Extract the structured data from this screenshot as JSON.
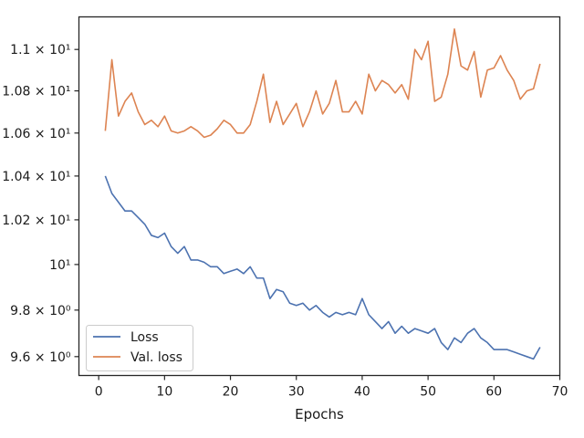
{
  "chart_data": {
    "type": "line",
    "xlabel": "Epochs",
    "ylabel": "",
    "yscale": "log",
    "xlim": [
      -3,
      70
    ],
    "ylim": [
      9.52,
      11.16
    ],
    "grid": false,
    "legend_position": "lower-left",
    "x_ticks": [
      {
        "value": 0,
        "label": "0"
      },
      {
        "value": 10,
        "label": "10"
      },
      {
        "value": 20,
        "label": "20"
      },
      {
        "value": 30,
        "label": "30"
      },
      {
        "value": 40,
        "label": "40"
      },
      {
        "value": 50,
        "label": "50"
      },
      {
        "value": 60,
        "label": "60"
      },
      {
        "value": 70,
        "label": "70"
      }
    ],
    "y_ticks": [
      {
        "value": 9.6,
        "label": "9.6 × 10⁰"
      },
      {
        "value": 9.8,
        "label": "9.8 × 10⁰"
      },
      {
        "value": 10.0,
        "label": "10¹"
      },
      {
        "value": 10.2,
        "label": "1.02 × 10¹"
      },
      {
        "value": 10.4,
        "label": "1.04 × 10¹"
      },
      {
        "value": 10.6,
        "label": "1.06 × 10¹"
      },
      {
        "value": 10.8,
        "label": "1.08 × 10¹"
      },
      {
        "value": 11.0,
        "label": "1.1 × 10¹"
      }
    ],
    "x": [
      1,
      2,
      3,
      4,
      5,
      6,
      7,
      8,
      9,
      10,
      11,
      12,
      13,
      14,
      15,
      16,
      17,
      18,
      19,
      20,
      21,
      22,
      23,
      24,
      25,
      26,
      27,
      28,
      29,
      30,
      31,
      32,
      33,
      34,
      35,
      36,
      37,
      38,
      39,
      40,
      41,
      42,
      43,
      44,
      45,
      46,
      47,
      48,
      49,
      50,
      51,
      52,
      53,
      54,
      55,
      56,
      57,
      58,
      59,
      60,
      61,
      62,
      63,
      64,
      65,
      66,
      67
    ],
    "series": [
      {
        "name": "Loss",
        "color": "#4c72b0",
        "values": [
          10.4,
          10.32,
          10.28,
          10.24,
          10.24,
          10.21,
          10.18,
          10.13,
          10.12,
          10.14,
          10.08,
          10.05,
          10.08,
          10.02,
          10.02,
          10.01,
          9.99,
          9.99,
          9.96,
          9.97,
          9.98,
          9.96,
          9.99,
          9.94,
          9.94,
          9.85,
          9.89,
          9.88,
          9.83,
          9.82,
          9.83,
          9.8,
          9.82,
          9.79,
          9.77,
          9.79,
          9.78,
          9.79,
          9.78,
          9.85,
          9.78,
          9.75,
          9.72,
          9.75,
          9.7,
          9.73,
          9.7,
          9.72,
          9.71,
          9.7,
          9.72,
          9.66,
          9.63,
          9.68,
          9.66,
          9.7,
          9.72,
          9.68,
          9.66,
          9.63,
          9.63,
          9.63,
          9.62,
          9.61,
          9.6,
          9.59,
          9.64
        ]
      },
      {
        "name": "Val. loss",
        "color": "#dd8452",
        "values": [
          10.61,
          10.95,
          10.68,
          10.75,
          10.79,
          10.7,
          10.64,
          10.66,
          10.63,
          10.68,
          10.61,
          10.6,
          10.61,
          10.63,
          10.61,
          10.58,
          10.59,
          10.62,
          10.66,
          10.64,
          10.6,
          10.6,
          10.64,
          10.75,
          10.88,
          10.65,
          10.75,
          10.64,
          10.69,
          10.74,
          10.63,
          10.7,
          10.8,
          10.69,
          10.74,
          10.85,
          10.7,
          10.7,
          10.75,
          10.69,
          10.88,
          10.8,
          10.85,
          10.83,
          10.79,
          10.83,
          10.76,
          11.0,
          10.95,
          11.04,
          10.75,
          10.77,
          10.88,
          11.1,
          10.92,
          10.9,
          10.99,
          10.77,
          10.9,
          10.91,
          10.97,
          10.9,
          10.85,
          10.76,
          10.8,
          10.81,
          10.93
        ]
      }
    ]
  }
}
